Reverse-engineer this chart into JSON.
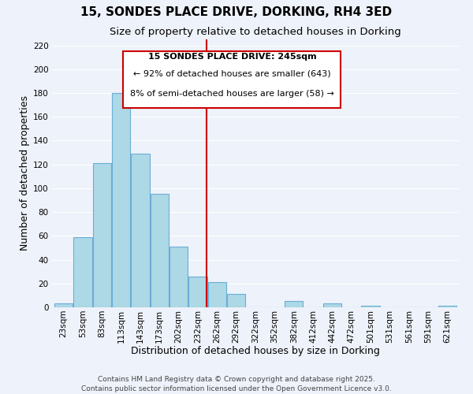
{
  "title": "15, SONDES PLACE DRIVE, DORKING, RH4 3ED",
  "subtitle": "Size of property relative to detached houses in Dorking",
  "xlabel": "Distribution of detached houses by size in Dorking",
  "ylabel": "Number of detached properties",
  "bar_color": "#add8e6",
  "bar_edge_color": "#6aaed6",
  "background_color": "#eef2fa",
  "grid_color": "#ffffff",
  "bin_labels": [
    "23sqm",
    "53sqm",
    "83sqm",
    "113sqm",
    "143sqm",
    "173sqm",
    "202sqm",
    "232sqm",
    "262sqm",
    "292sqm",
    "322sqm",
    "352sqm",
    "382sqm",
    "412sqm",
    "442sqm",
    "472sqm",
    "501sqm",
    "531sqm",
    "561sqm",
    "591sqm",
    "621sqm"
  ],
  "bar_heights": [
    3,
    59,
    121,
    180,
    129,
    95,
    51,
    26,
    21,
    11,
    0,
    0,
    5,
    0,
    3,
    0,
    1,
    0,
    0,
    0,
    1
  ],
  "ylim": [
    0,
    225
  ],
  "yticks": [
    0,
    20,
    40,
    60,
    80,
    100,
    120,
    140,
    160,
    180,
    200,
    220
  ],
  "annotation_title": "15 SONDES PLACE DRIVE: 245sqm",
  "annotation_line1": "← 92% of detached houses are smaller (643)",
  "annotation_line2": "8% of semi-detached houses are larger (58) →",
  "footer1": "Contains HM Land Registry data © Crown copyright and database right 2025.",
  "footer2": "Contains public sector information licensed under the Open Government Licence v3.0.",
  "annotation_box_color": "#ffffff",
  "annotation_border_color": "#cc0000",
  "vline_color": "#cc0000",
  "title_fontsize": 11,
  "subtitle_fontsize": 9.5,
  "axis_label_fontsize": 9,
  "tick_fontsize": 7.5,
  "annotation_fontsize": 8,
  "footer_fontsize": 6.5
}
